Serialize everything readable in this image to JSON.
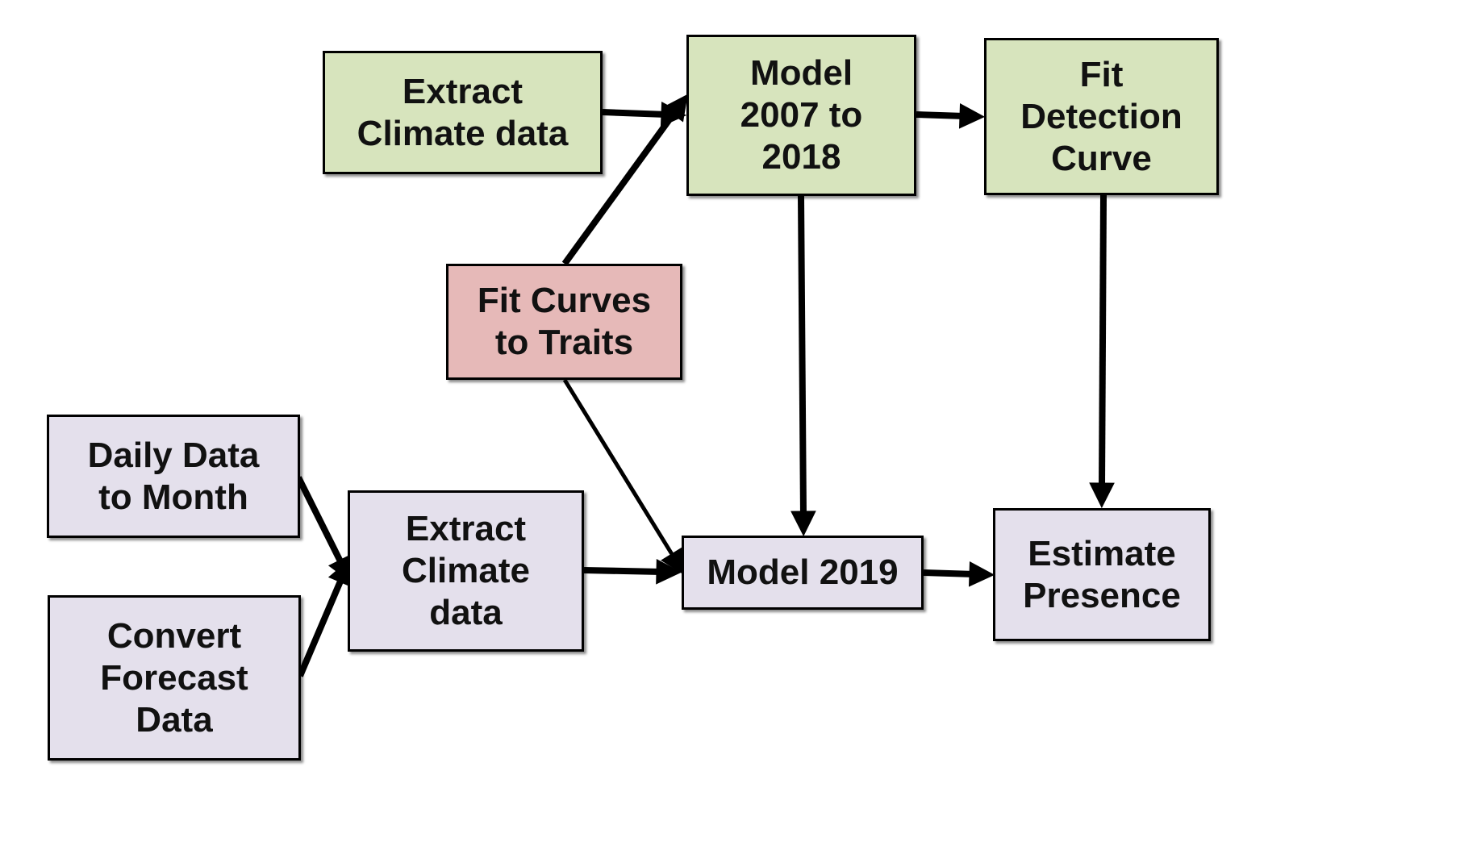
{
  "diagram": {
    "nodes": [
      {
        "id": "extract-climate-top",
        "label": "Extract\nClimate data",
        "color": "#d7e4bd"
      },
      {
        "id": "model-2007-2018",
        "label": "Model\n2007 to\n2018",
        "color": "#d7e4bd"
      },
      {
        "id": "fit-detection-curve",
        "label": "Fit\nDetection\nCurve",
        "color": "#d7e4bd"
      },
      {
        "id": "fit-curves-traits",
        "label": "Fit Curves\nto Traits",
        "color": "#e6b9b8"
      },
      {
        "id": "daily-data-month",
        "label": "Daily Data\nto Month",
        "color": "#e4e0ec"
      },
      {
        "id": "extract-climate-bottom",
        "label": "Extract\nClimate\ndata",
        "color": "#e4e0ec"
      },
      {
        "id": "model-2019",
        "label": "Model 2019",
        "color": "#e4e0ec"
      },
      {
        "id": "estimate-presence",
        "label": "Estimate\nPresence",
        "color": "#e4e0ec"
      },
      {
        "id": "convert-forecast",
        "label": "Convert\nForecast\nData",
        "color": "#e4e0ec"
      }
    ],
    "edges": [
      {
        "from": "extract-climate-top",
        "to": "model-2007-2018"
      },
      {
        "from": "fit-curves-traits",
        "to": "model-2007-2018"
      },
      {
        "from": "model-2007-2018",
        "to": "fit-detection-curve"
      },
      {
        "from": "model-2007-2018",
        "to": "model-2019"
      },
      {
        "from": "fit-detection-curve",
        "to": "estimate-presence"
      },
      {
        "from": "fit-curves-traits",
        "to": "model-2019"
      },
      {
        "from": "daily-data-month",
        "to": "extract-climate-bottom"
      },
      {
        "from": "convert-forecast",
        "to": "extract-climate-bottom"
      },
      {
        "from": "extract-climate-bottom",
        "to": "model-2019"
      },
      {
        "from": "model-2019",
        "to": "estimate-presence"
      }
    ]
  }
}
